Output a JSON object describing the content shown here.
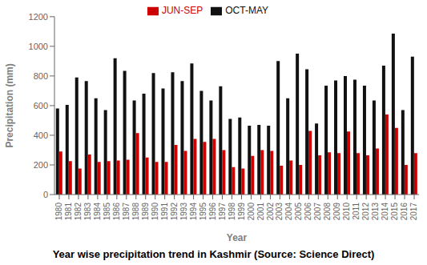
{
  "chart_data": {
    "type": "bar",
    "title": "Year wise precipitation trend in Kashmir (Source: Science Direct)",
    "xlabel": "Year",
    "ylabel": "Precipitation (mm)",
    "categories": [
      "1980",
      "1981",
      "1982",
      "1983",
      "1984",
      "1985",
      "1986",
      "1987",
      "1988",
      "1989",
      "1990",
      "1991",
      "1992",
      "1993",
      "1994",
      "1995",
      "1996",
      "1997",
      "1998",
      "1999",
      "2000",
      "2001",
      "2002",
      "2003",
      "2004",
      "2005",
      "2006",
      "2007",
      "2008",
      "2009",
      "2010",
      "2011",
      "2012",
      "2013",
      "2014",
      "2015",
      "2016",
      "2017"
    ],
    "series": [
      {
        "name": "OCT-MAY",
        "color": "#111111",
        "values": [
          580,
          605,
          790,
          765,
          650,
          570,
          920,
          835,
          635,
          680,
          820,
          715,
          825,
          765,
          885,
          700,
          635,
          730,
          510,
          520,
          465,
          470,
          465,
          900,
          650,
          950,
          845,
          480,
          735,
          770,
          800,
          775,
          735,
          635,
          870,
          1085,
          570,
          930
        ]
      },
      {
        "name": "JUN-SEP",
        "color": "#cc0000",
        "values": [
          290,
          225,
          175,
          270,
          220,
          225,
          230,
          235,
          415,
          250,
          220,
          220,
          335,
          295,
          375,
          355,
          375,
          300,
          185,
          175,
          260,
          300,
          295,
          195,
          230,
          200,
          430,
          265,
          285,
          280,
          425,
          280,
          265,
          310,
          540,
          450,
          200,
          280
        ]
      }
    ],
    "ylim": [
      0,
      1200
    ],
    "yticks": [
      0,
      200,
      400,
      600,
      800,
      1000,
      1200
    ],
    "grid": false,
    "legend": "upper center"
  }
}
